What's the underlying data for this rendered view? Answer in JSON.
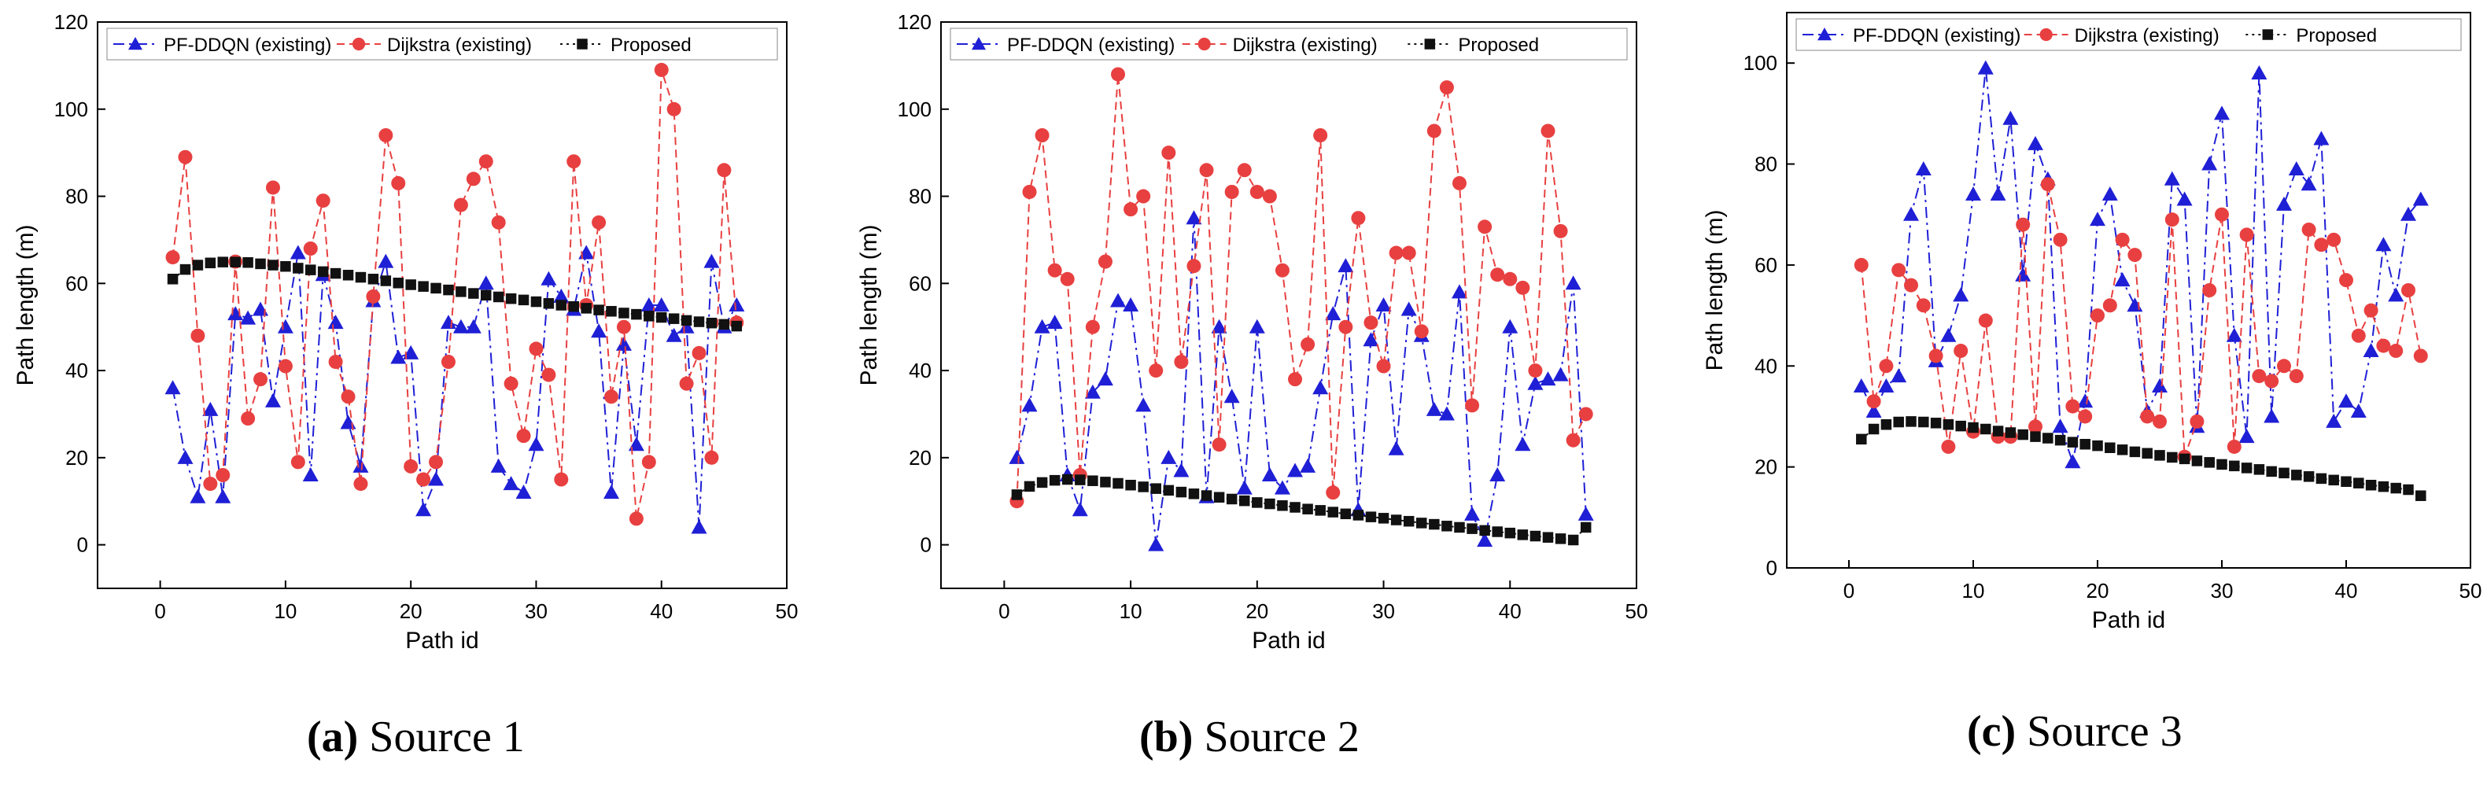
{
  "chart_data": [
    {
      "type": "line",
      "title": "",
      "caption": {
        "letter": "(a)",
        "text": " Source 1"
      },
      "xlabel": "Path id",
      "ylabel": "Path length (m)",
      "xlim": [
        -5,
        50
      ],
      "ylim": [
        -10,
        120
      ],
      "xticks": [
        0,
        10,
        20,
        30,
        40,
        50
      ],
      "yticks": [
        0,
        20,
        40,
        60,
        80,
        100,
        120
      ],
      "legend_position": "top",
      "x": [
        1,
        2,
        3,
        4,
        5,
        6,
        7,
        8,
        9,
        10,
        11,
        12,
        13,
        14,
        15,
        16,
        17,
        18,
        19,
        20,
        21,
        22,
        23,
        24,
        25,
        26,
        27,
        28,
        29,
        30,
        31,
        32,
        33,
        34,
        35,
        36,
        37,
        38,
        39,
        40,
        41,
        42,
        43,
        44,
        45,
        46
      ],
      "series": [
        {
          "name": "PF-DDQN (existing)",
          "color": "#1f1fd6",
          "marker": "triangle",
          "dash": "dashdot",
          "values": [
            36,
            20,
            11,
            31,
            11,
            53,
            52,
            54,
            33,
            50,
            67,
            16,
            62,
            51,
            28,
            18,
            56,
            65,
            43,
            44,
            8,
            15,
            51,
            50,
            50,
            60,
            18,
            14,
            12,
            23,
            61,
            57,
            54,
            67,
            49,
            12,
            46,
            23,
            55,
            55,
            48,
            50,
            4,
            65,
            50,
            55
          ]
        },
        {
          "name": "Dijkstra (existing)",
          "color": "#e84040",
          "marker": "circle",
          "dash": "dash",
          "values": [
            66,
            89,
            48,
            14,
            16,
            65,
            29,
            38,
            82,
            41,
            19,
            68,
            79,
            42,
            34,
            14,
            57,
            94,
            83,
            18,
            15,
            19,
            42,
            78,
            84,
            88,
            74,
            37,
            25,
            45,
            39,
            15,
            88,
            55,
            74,
            34,
            50,
            6,
            19,
            109,
            100,
            37,
            44,
            20,
            86,
            51
          ]
        },
        {
          "name": "Proposed",
          "color": "#111111",
          "marker": "square",
          "dash": "dot",
          "values": [
            61,
            63.2,
            64.2,
            64.7,
            64.9,
            64.9,
            64.8,
            64.5,
            64.2,
            63.9,
            63.5,
            63.1,
            62.7,
            62.3,
            61.9,
            61.4,
            61,
            60.6,
            60.1,
            59.7,
            59.3,
            58.9,
            58.5,
            58.1,
            57.7,
            57.3,
            56.9,
            56.5,
            56.2,
            55.8,
            55.4,
            55,
            54.7,
            54.3,
            53.9,
            53.6,
            53.2,
            52.9,
            52.5,
            52.2,
            51.9,
            51.5,
            51.2,
            50.9,
            50.6,
            50.2
          ]
        }
      ]
    },
    {
      "type": "line",
      "title": "",
      "caption": {
        "letter": "(b)",
        "text": " Source 2"
      },
      "xlabel": "Path id",
      "ylabel": "Path length (m)",
      "xlim": [
        -5,
        50
      ],
      "ylim": [
        -10,
        120
      ],
      "xticks": [
        0,
        10,
        20,
        30,
        40,
        50
      ],
      "yticks": [
        0,
        20,
        40,
        60,
        80,
        100,
        120
      ],
      "legend_position": "top",
      "x": [
        1,
        2,
        3,
        4,
        5,
        6,
        7,
        8,
        9,
        10,
        11,
        12,
        13,
        14,
        15,
        16,
        17,
        18,
        19,
        20,
        21,
        22,
        23,
        24,
        25,
        26,
        27,
        28,
        29,
        30,
        31,
        32,
        33,
        34,
        35,
        36,
        37,
        38,
        39,
        40,
        41,
        42,
        43,
        44,
        45,
        46
      ],
      "series": [
        {
          "name": "PF-DDQN (existing)",
          "color": "#1f1fd6",
          "marker": "triangle",
          "dash": "dashdot",
          "values": [
            20,
            32,
            50,
            51,
            16,
            8,
            35,
            38,
            56,
            55,
            32,
            0,
            20,
            17,
            75,
            11,
            50,
            34,
            13,
            50,
            16,
            13,
            17,
            18,
            36,
            53,
            64,
            8,
            47,
            55,
            22,
            54,
            48,
            31,
            30,
            58,
            7,
            1,
            16,
            50,
            23,
            37,
            38,
            39,
            60,
            7
          ]
        },
        {
          "name": "Dijkstra (existing)",
          "color": "#e84040",
          "marker": "circle",
          "dash": "dash",
          "values": [
            10,
            81,
            94,
            63,
            61,
            16,
            50,
            65,
            108,
            77,
            80,
            40,
            90,
            42,
            64,
            86,
            23,
            81,
            86,
            81,
            80,
            63,
            38,
            46,
            94,
            12,
            50,
            75,
            51,
            41,
            67,
            67,
            49,
            95,
            105,
            83,
            32,
            73,
            62,
            61,
            59,
            40,
            95,
            72,
            24,
            30
          ]
        },
        {
          "name": "Proposed",
          "color": "#111111",
          "marker": "square",
          "dash": "dot",
          "values": [
            11.5,
            13.4,
            14.3,
            14.8,
            15,
            14.9,
            14.7,
            14.4,
            14.1,
            13.7,
            13.3,
            12.9,
            12.5,
            12.1,
            11.7,
            11.3,
            10.9,
            10.5,
            10.1,
            9.7,
            9.4,
            9,
            8.6,
            8.2,
            7.9,
            7.5,
            7.1,
            6.8,
            6.4,
            6.1,
            5.7,
            5.4,
            5,
            4.7,
            4.3,
            4,
            3.7,
            3.3,
            3,
            2.7,
            2.3,
            2,
            1.7,
            1.4,
            1.1,
            4
          ]
        }
      ]
    },
    {
      "type": "line",
      "title": "",
      "caption": {
        "letter": "(c)",
        "text": " Source 3"
      },
      "xlabel": "Path id",
      "ylabel": "Path length (m)",
      "xlim": [
        -5,
        50
      ],
      "ylim": [
        0,
        110
      ],
      "xticks": [
        0,
        10,
        20,
        30,
        40,
        50
      ],
      "yticks": [
        0,
        20,
        40,
        60,
        80,
        100
      ],
      "legend_position": "top",
      "x": [
        1,
        2,
        3,
        4,
        5,
        6,
        7,
        8,
        9,
        10,
        11,
        12,
        13,
        14,
        15,
        16,
        17,
        18,
        19,
        20,
        21,
        22,
        23,
        24,
        25,
        26,
        27,
        28,
        29,
        30,
        31,
        32,
        33,
        34,
        35,
        36,
        37,
        38,
        39,
        40,
        41,
        42,
        43,
        44,
        45,
        46
      ],
      "series": [
        {
          "name": "PF-DDQN (existing)",
          "color": "#1f1fd6",
          "marker": "triangle",
          "dash": "dashdot",
          "values": [
            36,
            31,
            36,
            38,
            70,
            79,
            41,
            46,
            54,
            74,
            99,
            74,
            89,
            58,
            84,
            77,
            28,
            21,
            33,
            69,
            74,
            57,
            52,
            31,
            36,
            77,
            73,
            28,
            80,
            90,
            46,
            26,
            98,
            30,
            72,
            79,
            76,
            85,
            29,
            33,
            31,
            43,
            64,
            54,
            70,
            73
          ]
        },
        {
          "name": "Dijkstra (existing)",
          "color": "#e84040",
          "marker": "circle",
          "dash": "dash",
          "values": [
            60,
            33,
            40,
            59,
            56,
            52,
            42,
            24,
            43,
            27,
            49,
            26,
            26,
            68,
            28,
            76,
            65,
            32,
            30,
            50,
            52,
            65,
            62,
            30,
            29,
            69,
            22,
            29,
            55,
            70,
            24,
            66,
            38,
            37,
            40,
            38,
            67,
            64,
            65,
            57,
            46,
            51,
            44,
            43,
            55,
            42
          ]
        },
        {
          "name": "Proposed",
          "color": "#111111",
          "marker": "square",
          "dash": "dot",
          "values": [
            25.5,
            27.5,
            28.4,
            28.9,
            29,
            28.9,
            28.7,
            28.4,
            28.1,
            27.8,
            27.5,
            27.1,
            26.8,
            26.4,
            26,
            25.7,
            25.3,
            24.9,
            24.5,
            24.2,
            23.8,
            23.4,
            23,
            22.7,
            22.3,
            21.9,
            21.6,
            21.2,
            20.9,
            20.5,
            20.2,
            19.8,
            19.5,
            19.1,
            18.8,
            18.4,
            18.1,
            17.7,
            17.4,
            17.1,
            16.8,
            16.4,
            16.1,
            15.8,
            15.5,
            14.3
          ]
        }
      ]
    }
  ]
}
